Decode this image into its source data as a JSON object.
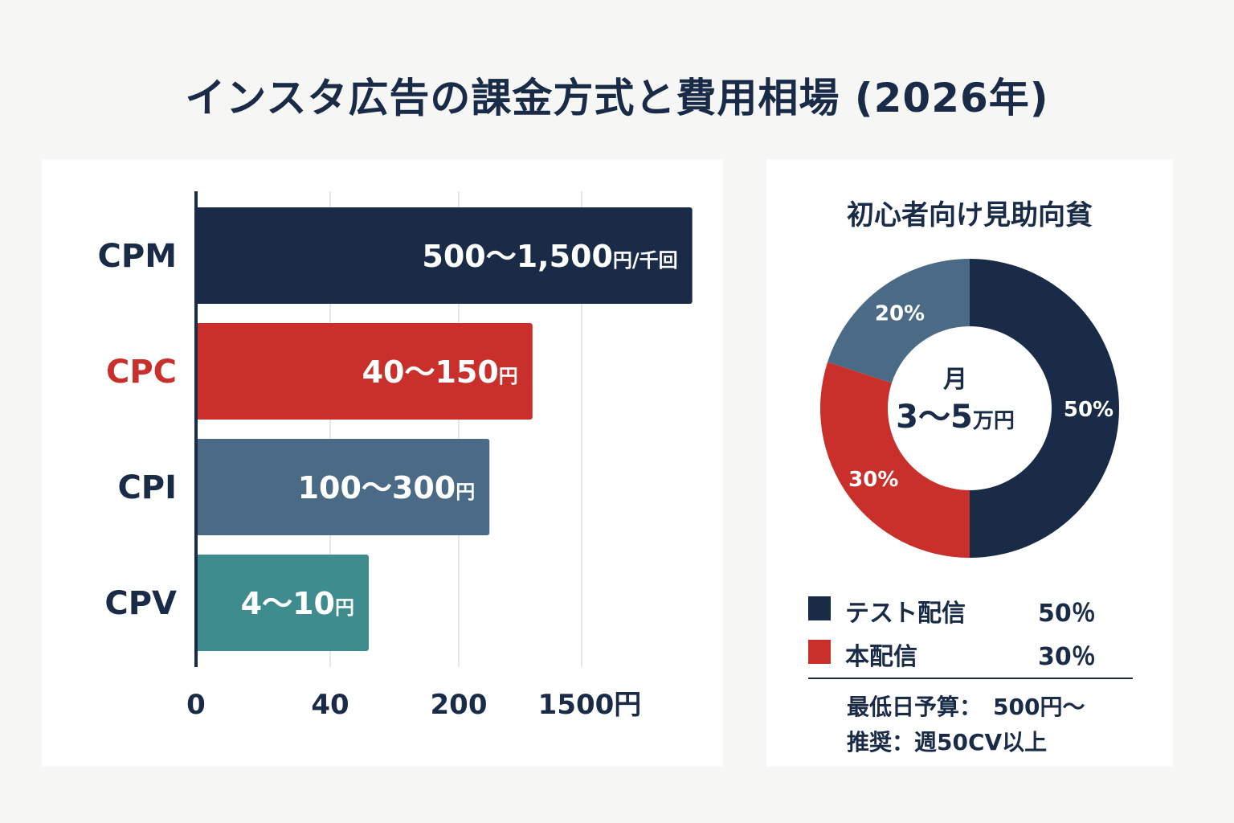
{
  "title": "インスタ広告の課金方式と費用相場 (2026年)",
  "colors": {
    "navy": "#1a2b48",
    "red": "#c9302c",
    "slate": "#4a6a85",
    "teal": "#3f8c8e",
    "grid": "#e6e6e6",
    "background": "#f6f6f5",
    "panel": "#ffffff"
  },
  "chart_data": [
    {
      "type": "bar",
      "orientation": "horizontal",
      "categories": [
        "CPM",
        "CPC",
        "CPI",
        "CPV"
      ],
      "value_labels": [
        {
          "main": "500～1,500",
          "unit": "円/千回"
        },
        {
          "main": "40～150",
          "unit": "円"
        },
        {
          "main": "100～300",
          "unit": "円"
        },
        {
          "main": "4～10",
          "unit": "円"
        }
      ],
      "category_colors": [
        "#1a2b48",
        "#c9302c",
        "#1a2b48",
        "#1a2b48"
      ],
      "bar_colors": [
        "#1a2b48",
        "#c9302c",
        "#4a6a85",
        "#3f8c8e"
      ],
      "x_ticks": [
        "0",
        "40",
        "200",
        "1500円"
      ],
      "x_tick_values": [
        0,
        1,
        2,
        3
      ],
      "bar_extents": [
        3.9,
        2.6,
        2.25,
        1.3
      ],
      "xlim": [
        0,
        4
      ],
      "grid": true
    },
    {
      "type": "pie",
      "variant": "donut",
      "title": "初心者向け見助向貧",
      "center_label": {
        "line1": "月",
        "line2_main": "3～5",
        "line2_unit": "万円"
      },
      "slices": [
        {
          "label": "50%",
          "value": 50,
          "color": "#1a2b48"
        },
        {
          "label": "30%",
          "value": 30,
          "color": "#c9302c"
        },
        {
          "label": "20%",
          "value": 20,
          "color": "#4a6a85"
        }
      ]
    }
  ],
  "legend": [
    {
      "name": "テスト配信",
      "value": "50％",
      "color": "#1a2b48"
    },
    {
      "name": "本配信",
      "value": "30％",
      "color": "#c9302c"
    }
  ],
  "notes": {
    "min_budget": "最低日予算：　500円～",
    "recommend": "推奨：週50CV以上"
  }
}
